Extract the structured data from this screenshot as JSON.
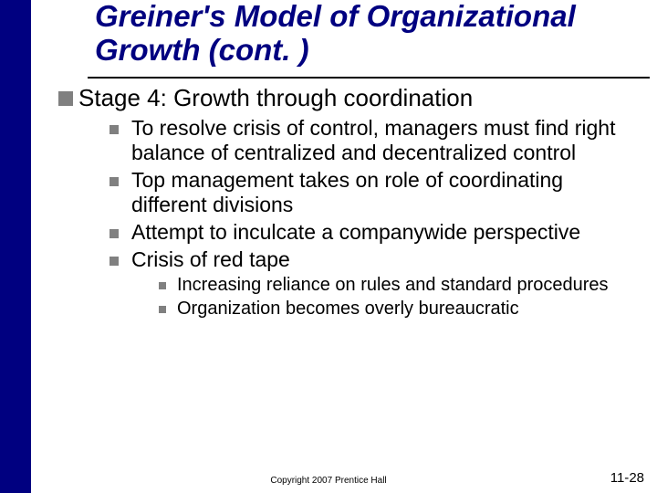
{
  "title": "Greiner's Model of Organizational Growth (cont. )",
  "colors": {
    "sidebar": "#000080",
    "title": "#000080",
    "bullet": "#808080",
    "rule": "#000000",
    "background": "#ffffff",
    "text": "#000000"
  },
  "bullets_lvl1": [
    {
      "text": "Stage 4: Growth through coordination"
    }
  ],
  "bullets_lvl2": [
    {
      "text": "To resolve crisis of control, managers must find right balance of centralized and decentralized control"
    },
    {
      "text": "Top management takes on role of coordinating different divisions"
    },
    {
      "text": "Attempt to inculcate a companywide perspective"
    },
    {
      "text": "Crisis of red tape"
    }
  ],
  "bullets_lvl3": [
    {
      "text": "Increasing reliance on rules and standard procedures"
    },
    {
      "text": "Organization becomes overly bureaucratic"
    }
  ],
  "copyright": "Copyright 2007 Prentice Hall",
  "page": {
    "chapter": "11-",
    "num": "28"
  }
}
